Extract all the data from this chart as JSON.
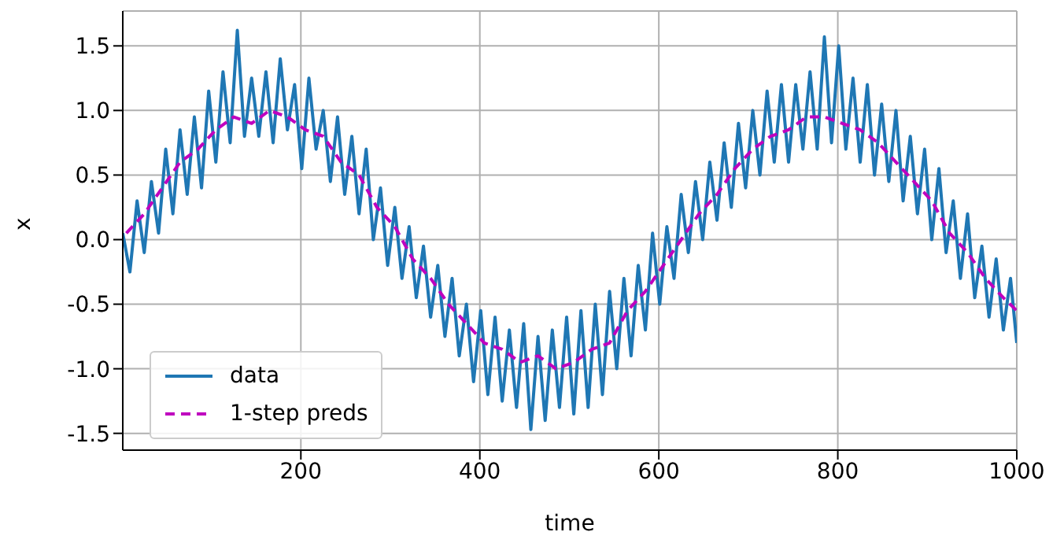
{
  "chart_data": {
    "type": "line",
    "xlabel": "time",
    "ylabel": "x",
    "xlim": [
      1,
      1000
    ],
    "ylim": [
      -1.63,
      1.77
    ],
    "xticks": [
      200,
      400,
      600,
      800,
      1000
    ],
    "yticks": [
      -1.5,
      {
        "value": -1,
        "label": "-1.0"
      },
      -0.5,
      {
        "value": 0,
        "label": "0.0"
      },
      0.5,
      {
        "value": 1,
        "label": "1.0"
      },
      1.5
    ],
    "grid": true,
    "legend": "bottom left",
    "series": [
      {
        "name": "data",
        "color": "#1f77b4",
        "line_style": "solid",
        "x": [
          1,
          9,
          17,
          25,
          33,
          41,
          49,
          57,
          65,
          73,
          81,
          89,
          97,
          105,
          113,
          121,
          129,
          137,
          145,
          153,
          161,
          169,
          177,
          185,
          193,
          201,
          209,
          217,
          225,
          233,
          241,
          249,
          257,
          265,
          273,
          281,
          289,
          297,
          305,
          313,
          321,
          329,
          337,
          345,
          353,
          361,
          369,
          377,
          385,
          393,
          401,
          409,
          417,
          425,
          433,
          441,
          449,
          457,
          465,
          473,
          481,
          489,
          497,
          505,
          513,
          521,
          529,
          537,
          545,
          553,
          561,
          569,
          577,
          585,
          593,
          601,
          609,
          617,
          625,
          633,
          641,
          649,
          657,
          665,
          673,
          681,
          689,
          697,
          705,
          713,
          721,
          729,
          737,
          745,
          753,
          761,
          769,
          777,
          785,
          793,
          801,
          809,
          817,
          825,
          833,
          841,
          849,
          857,
          865,
          873,
          881,
          889,
          897,
          905,
          913,
          921,
          929,
          937,
          945,
          953,
          961,
          969,
          977,
          985,
          993,
          1000
        ],
        "values": [
          0.05,
          -0.25,
          0.3,
          -0.1,
          0.45,
          0.05,
          0.7,
          0.2,
          0.85,
          0.35,
          0.95,
          0.4,
          1.15,
          0.6,
          1.3,
          0.75,
          1.62,
          0.8,
          1.25,
          0.8,
          1.3,
          0.75,
          1.4,
          0.85,
          1.2,
          0.55,
          1.25,
          0.7,
          1.0,
          0.45,
          0.95,
          0.35,
          0.8,
          0.2,
          0.7,
          0.0,
          0.4,
          -0.2,
          0.25,
          -0.3,
          0.1,
          -0.45,
          -0.05,
          -0.6,
          -0.2,
          -0.75,
          -0.3,
          -0.9,
          -0.5,
          -1.1,
          -0.55,
          -1.2,
          -0.6,
          -1.25,
          -0.7,
          -1.3,
          -0.65,
          -1.47,
          -0.75,
          -1.4,
          -0.7,
          -1.3,
          -0.6,
          -1.35,
          -0.55,
          -1.3,
          -0.5,
          -1.2,
          -0.4,
          -1.0,
          -0.3,
          -0.9,
          -0.2,
          -0.7,
          0.05,
          -0.5,
          0.1,
          -0.3,
          0.35,
          -0.1,
          0.45,
          0.0,
          0.6,
          0.15,
          0.75,
          0.25,
          0.9,
          0.4,
          1.0,
          0.5,
          1.15,
          0.6,
          1.2,
          0.6,
          1.2,
          0.7,
          1.3,
          0.7,
          1.57,
          0.75,
          1.5,
          0.7,
          1.25,
          0.6,
          1.2,
          0.5,
          1.05,
          0.45,
          1.0,
          0.3,
          0.8,
          0.2,
          0.7,
          0.0,
          0.55,
          -0.1,
          0.3,
          -0.3,
          0.2,
          -0.45,
          -0.05,
          -0.6,
          -0.15,
          -0.7,
          -0.3,
          -0.8
        ]
      },
      {
        "name": "1-step preds",
        "color": "#bf00bf",
        "line_style": "dashed",
        "x": [
          5,
          25,
          45,
          65,
          85,
          105,
          125,
          145,
          165,
          185,
          205,
          225,
          245,
          265,
          285,
          305,
          325,
          345,
          365,
          385,
          405,
          425,
          445,
          465,
          485,
          505,
          525,
          545,
          565,
          585,
          605,
          625,
          645,
          665,
          685,
          705,
          725,
          745,
          765,
          785,
          805,
          825,
          845,
          865,
          885,
          905,
          925,
          945,
          965,
          985,
          1000
        ],
        "values": [
          0.05,
          0.2,
          0.4,
          0.6,
          0.7,
          0.85,
          0.95,
          0.9,
          1.0,
          0.95,
          0.85,
          0.8,
          0.6,
          0.5,
          0.25,
          0.1,
          -0.15,
          -0.3,
          -0.5,
          -0.65,
          -0.8,
          -0.85,
          -0.95,
          -0.9,
          -1.0,
          -0.95,
          -0.85,
          -0.8,
          -0.55,
          -0.4,
          -0.2,
          0.0,
          0.2,
          0.35,
          0.55,
          0.7,
          0.8,
          0.85,
          0.95,
          0.95,
          0.9,
          0.85,
          0.75,
          0.6,
          0.45,
          0.3,
          0.05,
          -0.1,
          -0.3,
          -0.45,
          -0.55
        ]
      }
    ]
  }
}
